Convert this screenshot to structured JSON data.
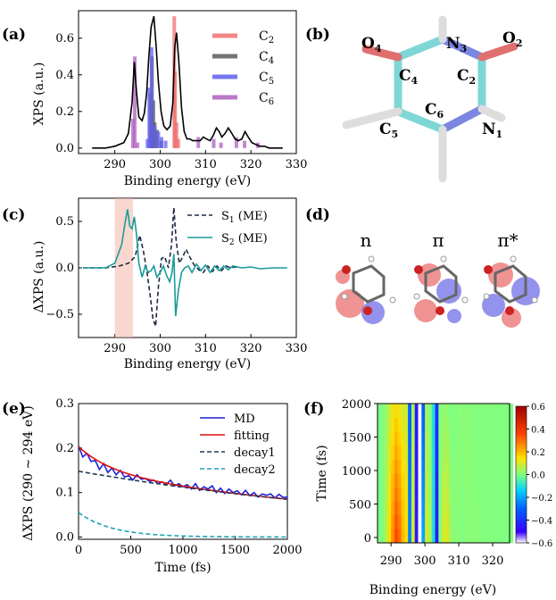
{
  "chart_data": [
    {
      "panel": "(a)",
      "type": "line",
      "xlabel": "Binding energy (eV)",
      "ylabel": "XPS (a.u.)",
      "xlim": [
        282,
        330
      ],
      "ylim": [
        -0.03,
        0.75
      ],
      "xticks": [
        290,
        300,
        310,
        320,
        330
      ],
      "yticks": [
        0.0,
        0.2,
        0.4,
        0.6
      ],
      "legend": [
        "C2",
        "C4",
        "C5",
        "C6"
      ],
      "series": [
        {
          "name": "spectrum",
          "color": "#000000",
          "x": [
            285,
            288,
            290,
            292,
            293,
            293.8,
            294.3,
            294.8,
            295.3,
            296,
            296.5,
            297,
            297.5,
            298,
            298.6,
            299.1,
            299.6,
            300.2,
            300.8,
            301.5,
            302.2,
            302.8,
            303.2,
            303.6,
            304.1,
            304.7,
            305.3,
            305.9,
            306.5,
            307.2,
            308,
            308.8,
            309.5,
            310.2,
            311,
            311.7,
            312.4,
            313,
            313.6,
            314.3,
            315,
            315.8,
            316.5,
            317.2,
            318,
            318.7,
            319.4,
            320.2,
            321,
            322,
            323,
            324,
            325,
            326,
            327
          ],
          "y": [
            0.0,
            0.0,
            0.01,
            0.03,
            0.08,
            0.25,
            0.47,
            0.3,
            0.17,
            0.15,
            0.19,
            0.3,
            0.5,
            0.66,
            0.72,
            0.56,
            0.36,
            0.2,
            0.12,
            0.1,
            0.12,
            0.25,
            0.55,
            0.63,
            0.48,
            0.22,
            0.09,
            0.05,
            0.05,
            0.04,
            0.04,
            0.04,
            0.06,
            0.05,
            0.04,
            0.07,
            0.11,
            0.09,
            0.06,
            0.08,
            0.11,
            0.08,
            0.05,
            0.04,
            0.05,
            0.09,
            0.06,
            0.03,
            0.02,
            0.01,
            0.01,
            0.0,
            0.0,
            0.0,
            0.0
          ]
        },
        {
          "name": "C2",
          "color": "#f07070",
          "x": [
            303.1,
            303.3,
            303.6,
            304.0
          ],
          "y": [
            0.72,
            0.42,
            0.14,
            0.05
          ]
        },
        {
          "name": "C4",
          "color": "#5b5b5b",
          "x": [
            297.8,
            298.2,
            298.5,
            298.8,
            299.3,
            300.2
          ],
          "y": [
            0.3,
            0.5,
            0.26,
            0.14,
            0.1,
            0.04
          ]
        },
        {
          "name": "C5",
          "color": "#6060f0",
          "x": [
            297.2,
            297.6,
            298.1,
            298.8,
            299.6,
            300.3,
            301.2
          ],
          "y": [
            0.05,
            0.33,
            0.55,
            0.12,
            0.09,
            0.06,
            0.04
          ]
        },
        {
          "name": "C6",
          "color": "#b060c0",
          "x": [
            294.0,
            294.4,
            295.0,
            308.4,
            311.8,
            313.4,
            316.8,
            318.6,
            321.5
          ],
          "y": [
            0.16,
            0.5,
            0.03,
            0.06,
            0.05,
            0.03,
            0.06,
            0.04,
            0.03
          ]
        }
      ]
    },
    {
      "panel": "(b)",
      "type": "diagram",
      "atom_labels": [
        "O",
        "4",
        "N",
        "3",
        "O",
        "2",
        "C",
        "4",
        "C",
        "2",
        "C",
        "6",
        "C",
        "5",
        "N",
        "1"
      ]
    },
    {
      "panel": "(c)",
      "type": "line",
      "xlabel": "Binding energy (eV)",
      "ylabel": "ΔXPS (a.u.)",
      "xlim": [
        282,
        330
      ],
      "ylim": [
        -0.75,
        0.75
      ],
      "xticks": [
        290,
        300,
        310,
        320,
        330
      ],
      "yticks": [
        -0.5,
        0.0,
        0.5
      ],
      "highlight_range": [
        290,
        294
      ],
      "series": [
        {
          "name": "S",
          "sub": "1",
          "suffix": " (ME)",
          "color": "#1f2a44",
          "dash": true,
          "x": [
            283,
            288,
            291,
            293,
            294.5,
            295.5,
            296.3,
            297.1,
            297.8,
            298.4,
            299.0,
            299.6,
            300.3,
            301.0,
            301.8,
            302.5,
            303.0,
            303.5,
            304.2,
            305.0,
            305.7,
            306.5,
            307.5,
            308.5,
            309.5,
            310.5,
            311.5,
            312.5,
            313.5,
            314.5,
            315.5,
            316.5,
            317.5
          ],
          "y": [
            0.0,
            0.0,
            0.02,
            0.05,
            0.12,
            0.35,
            0.18,
            -0.05,
            -0.3,
            -0.55,
            -0.63,
            -0.2,
            0.1,
            0.12,
            0.0,
            0.25,
            0.65,
            0.3,
            0.05,
            0.12,
            0.2,
            0.12,
            0.03,
            -0.02,
            -0.05,
            0.02,
            -0.04,
            0.02,
            -0.03,
            0.02,
            0.0,
            0.01,
            0.0
          ]
        },
        {
          "name": "S",
          "sub": "2",
          "suffix": " (ME)",
          "color": "#1a9a9a",
          "dash": false,
          "x": [
            283,
            288,
            290,
            291.5,
            292.3,
            292.8,
            293.3,
            293.8,
            294.3,
            294.8,
            295.3,
            296,
            296.7,
            297.4,
            298,
            298.6,
            299.3,
            300,
            300.7,
            301.4,
            302.1,
            302.6,
            303.0,
            303.4,
            304.0,
            304.7,
            305.4,
            306.2,
            307,
            308,
            309,
            310,
            311,
            312,
            313,
            314,
            315,
            316,
            318,
            320,
            322,
            325,
            328
          ],
          "y": [
            0.0,
            0.0,
            0.05,
            0.25,
            0.5,
            0.63,
            0.45,
            0.42,
            0.55,
            0.35,
            0.05,
            -0.1,
            0.02,
            -0.05,
            -0.03,
            0.02,
            -0.1,
            -0.05,
            0.02,
            -0.08,
            -0.15,
            -0.05,
            0.15,
            -0.52,
            -0.25,
            -0.05,
            0.0,
            0.02,
            -0.05,
            0.04,
            -0.03,
            0.03,
            -0.05,
            0.02,
            -0.03,
            0.02,
            -0.02,
            0.02,
            0.0,
            0.01,
            -0.01,
            0.0,
            0.0
          ]
        }
      ]
    },
    {
      "panel": "(d)",
      "type": "diagram",
      "orbitals": [
        "n",
        "π",
        "π*"
      ]
    },
    {
      "panel": "(e)",
      "type": "line",
      "xlabel": "Time (fs)",
      "ylabel": "ΔXPS (290 ∼ 294 eV)",
      "xlim": [
        0,
        2000
      ],
      "ylim": [
        -0.005,
        0.3
      ],
      "xticks": [
        0,
        500,
        1000,
        1500,
        2000
      ],
      "yticks": [
        0.0,
        0.1,
        0.2,
        0.3
      ],
      "series": [
        {
          "name": "MD",
          "color": "#1f1fd6",
          "x": [
            0,
            40,
            80,
            120,
            160,
            200,
            240,
            280,
            320,
            360,
            400,
            440,
            480,
            520,
            560,
            600,
            640,
            680,
            720,
            760,
            800,
            840,
            880,
            920,
            960,
            1000,
            1040,
            1080,
            1120,
            1160,
            1200,
            1240,
            1280,
            1320,
            1360,
            1400,
            1440,
            1480,
            1520,
            1560,
            1600,
            1640,
            1680,
            1720,
            1760,
            1800,
            1840,
            1880,
            1920,
            1960,
            2000
          ],
          "y": [
            0.205,
            0.18,
            0.188,
            0.17,
            0.172,
            0.152,
            0.165,
            0.145,
            0.155,
            0.14,
            0.15,
            0.135,
            0.138,
            0.128,
            0.14,
            0.13,
            0.132,
            0.125,
            0.128,
            0.12,
            0.124,
            0.118,
            0.128,
            0.115,
            0.12,
            0.113,
            0.118,
            0.108,
            0.12,
            0.105,
            0.113,
            0.108,
            0.115,
            0.1,
            0.11,
            0.098,
            0.108,
            0.1,
            0.104,
            0.095,
            0.105,
            0.093,
            0.1,
            0.09,
            0.097,
            0.094,
            0.097,
            0.088,
            0.096,
            0.089,
            0.09
          ]
        },
        {
          "name": "fitting",
          "color": "#e01010",
          "model": {
            "a1": 0.148,
            "t1": 3600,
            "a2": 0.055,
            "t2": 320
          }
        },
        {
          "name": "decay1",
          "color": "#1f3a5f",
          "dash": true,
          "model": {
            "a1": 0.148,
            "t1": 3600,
            "a2": 0,
            "t2": 1
          }
        },
        {
          "name": "decay2",
          "color": "#1aa3b8",
          "dash": true,
          "model": {
            "a1": 0,
            "t1": 1,
            "a2": 0.055,
            "t2": 320
          }
        }
      ]
    },
    {
      "panel": "(f)",
      "type": "heatmap",
      "xlabel": "Binding energy (eV)",
      "ylabel": "Time (fs)",
      "xlim": [
        286,
        325
      ],
      "ylim": [
        -80,
        2000
      ],
      "xticks": [
        290,
        300,
        310,
        320
      ],
      "yticks": [
        0,
        500,
        1000,
        1500,
        2000
      ],
      "colorbar": {
        "min": -0.6,
        "max": 0.6,
        "ticks": [
          "0.6",
          "0.4",
          "0.2",
          "0.0",
          "−0.2",
          "−0.4",
          "−0.6"
        ]
      },
      "columns_ev": [
        286,
        287,
        288,
        289,
        290,
        291,
        292,
        293,
        294,
        295,
        296,
        297,
        298,
        299,
        300,
        301,
        302,
        303,
        304,
        305,
        306,
        307,
        308,
        309,
        310,
        311,
        312,
        313,
        314,
        315,
        316,
        317,
        318,
        319,
        320,
        321,
        322,
        323,
        324,
        325
      ],
      "values_t0": [
        0.0,
        0.0,
        0.05,
        0.15,
        0.25,
        0.35,
        0.3,
        0.2,
        0.15,
        -0.25,
        0.1,
        -0.45,
        -0.6,
        -0.2,
        0.1,
        0.05,
        -0.1,
        -0.45,
        0.0,
        0.1,
        0.1,
        0.05,
        0.0,
        0.02,
        0.0,
        0.0,
        0.02,
        0.0,
        0.02,
        0.0,
        0.01,
        0.0,
        0.0,
        0.01,
        0.0,
        0.0,
        0.0,
        0.0,
        0.0,
        0.0
      ],
      "values_t2000": [
        0.0,
        0.0,
        0.02,
        0.08,
        0.12,
        0.15,
        0.12,
        0.1,
        0.08,
        -0.3,
        0.05,
        -0.45,
        -0.6,
        -0.3,
        0.05,
        0.0,
        -0.1,
        -0.4,
        0.0,
        0.02,
        0.02,
        0.0,
        0.0,
        0.0,
        0.02,
        0.0,
        0.02,
        0.0,
        0.01,
        0.0,
        0.01,
        0.0,
        0.0,
        0.01,
        0.0,
        0.0,
        0.0,
        0.0,
        0.0,
        0.0
      ]
    }
  ]
}
